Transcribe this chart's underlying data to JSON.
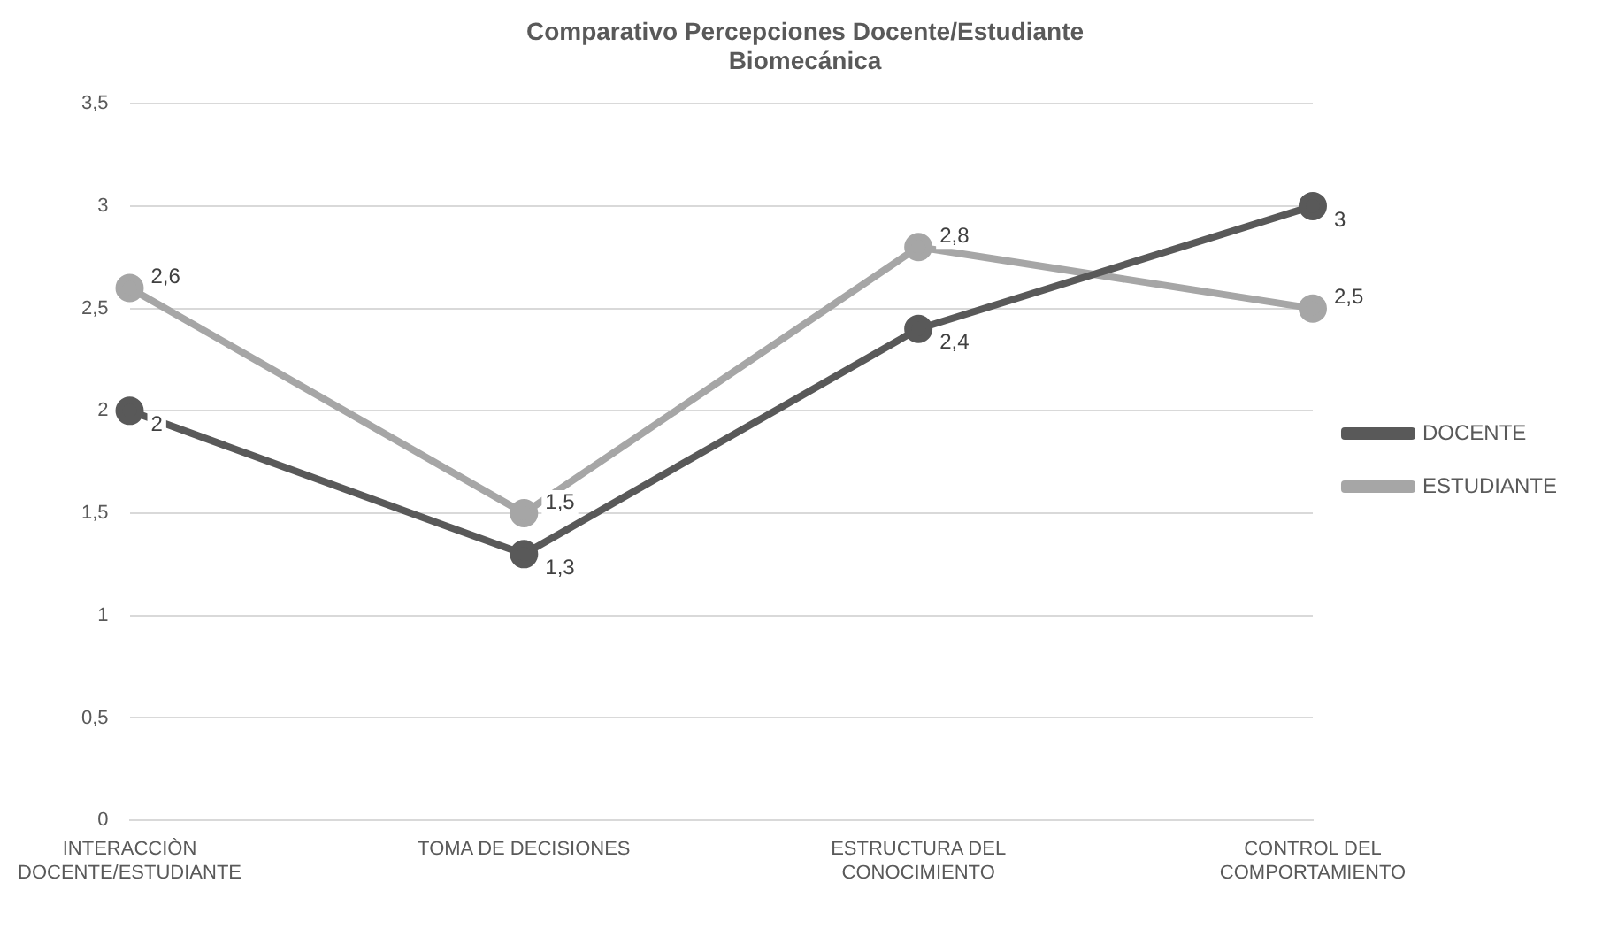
{
  "chart_data": {
    "type": "line",
    "title": "Comparativo Percepciones Docente/Estudiante Biomecánica",
    "categories": [
      "INTERACCIÒN DOCENTE/ESTUDIANTE",
      "TOMA DE DECISIONES",
      "ESTRUCTURA DEL CONOCIMIENTO",
      "CONTROL DEL COMPORTAMIENTO"
    ],
    "series": [
      {
        "name": "DOCENTE",
        "color": "#595959",
        "values": [
          2,
          1.3,
          2.4,
          3
        ],
        "value_labels": [
          "2",
          "1,3",
          "2,4",
          "3"
        ]
      },
      {
        "name": "ESTUDIANTE",
        "color": "#a6a6a6",
        "values": [
          2.6,
          1.5,
          2.8,
          2.5
        ],
        "value_labels": [
          "2,6",
          "1,5",
          "2,8",
          "2,5"
        ]
      }
    ],
    "ylim": [
      0,
      3.5
    ],
    "yticks": [
      0,
      {
        "value": 0.5,
        "label": "0,5"
      },
      1,
      {
        "value": 1.5,
        "label": "1,5"
      },
      2,
      {
        "value": 2.5,
        "label": "2,5"
      },
      3,
      {
        "value": 3.5,
        "label": "3,5"
      }
    ],
    "grid": "y",
    "legend": "right",
    "marker": "circle",
    "line_style": "solid"
  }
}
